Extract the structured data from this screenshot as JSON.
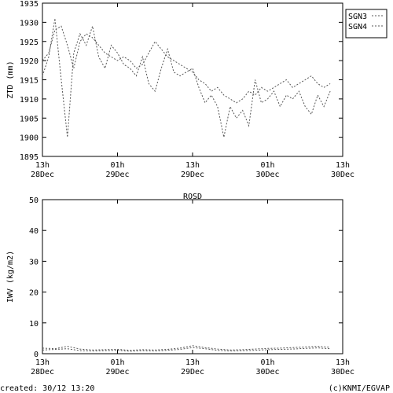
{
  "footer": {
    "created": "created: 30/12 13:20",
    "credit": "(c)KNMI/EGVAP"
  },
  "chart_data": [
    {
      "type": "line",
      "title": "",
      "ylabel": "ZTD (mm)",
      "ylim": [
        1895,
        1935
      ],
      "yticks": [
        1895,
        1900,
        1905,
        1910,
        1915,
        1920,
        1925,
        1930,
        1935
      ],
      "xlim": [
        0,
        48
      ],
      "xticks": [
        {
          "x": 0,
          "line1": "13h",
          "line2": "28Dec"
        },
        {
          "x": 12,
          "line1": "01h",
          "line2": "29Dec"
        },
        {
          "x": 24,
          "line1": "13h",
          "line2": "29Dec"
        },
        {
          "x": 36,
          "line1": "01h",
          "line2": "30Dec"
        },
        {
          "x": 48,
          "line1": "13h",
          "line2": "30Dec"
        }
      ],
      "legend_position": "top-right",
      "series": [
        {
          "name": "SGN3",
          "color": "#555555",
          "x": [
            0,
            1,
            2,
            3,
            4,
            5,
            6,
            7,
            8,
            9,
            10,
            11,
            12,
            13,
            14,
            15,
            16,
            17,
            18,
            19,
            20,
            21,
            22,
            23,
            24,
            25,
            26,
            27,
            28,
            29,
            30,
            31,
            32,
            33,
            34,
            35,
            36,
            37,
            38,
            39,
            40,
            41,
            42,
            43,
            44,
            45,
            46
          ],
          "values": [
            1920,
            1922,
            1928,
            1929,
            1924,
            1918,
            1925,
            1927,
            1926,
            1924,
            1922,
            1921,
            1920,
            1921,
            1920,
            1918,
            1919,
            1922,
            1925,
            1923,
            1921,
            1920,
            1919,
            1918,
            1917,
            1915,
            1914,
            1912,
            1913,
            1911,
            1910,
            1909,
            1910,
            1912,
            1911,
            1913,
            1912,
            1913,
            1914,
            1915,
            1913,
            1914,
            1915,
            1916,
            1914,
            1913,
            1914
          ]
        },
        {
          "name": "SGN4",
          "color": "#555555",
          "x": [
            0,
            1,
            2,
            3,
            4,
            5,
            6,
            7,
            8,
            9,
            10,
            11,
            12,
            13,
            14,
            15,
            16,
            17,
            18,
            19,
            20,
            21,
            22,
            23,
            24,
            25,
            26,
            27,
            28,
            29,
            30,
            31,
            32,
            33,
            34,
            35,
            36,
            37,
            38,
            39,
            40,
            41,
            42,
            43,
            44,
            45,
            46
          ],
          "values": [
            1916,
            1921,
            1931,
            1915,
            1900,
            1922,
            1927,
            1924,
            1929,
            1921,
            1918,
            1924,
            1922,
            1919,
            1918,
            1916,
            1921,
            1914,
            1912,
            1918,
            1923,
            1917,
            1916,
            1917,
            1918,
            1913,
            1909,
            1911,
            1908,
            1900,
            1908,
            1905,
            1907,
            1903,
            1915,
            1909,
            1910,
            1912,
            1908,
            1911,
            1910,
            1912,
            1908,
            1906,
            1911,
            1908,
            1912
          ]
        }
      ]
    },
    {
      "type": "line",
      "title": "ROSD",
      "ylabel": "IWV (kg/m2)",
      "ylim": [
        0,
        50
      ],
      "yticks": [
        0,
        10,
        20,
        30,
        40,
        50
      ],
      "xlim": [
        0,
        48
      ],
      "xticks": [
        {
          "x": 0,
          "line1": "13h",
          "line2": "28Dec"
        },
        {
          "x": 12,
          "line1": "01h",
          "line2": "29Dec"
        },
        {
          "x": 24,
          "line1": "13h",
          "line2": "29Dec"
        },
        {
          "x": 36,
          "line1": "01h",
          "line2": "30Dec"
        },
        {
          "x": 48,
          "line1": "13h",
          "line2": "30Dec"
        }
      ],
      "series": [
        {
          "color": "#555555",
          "x": [
            0,
            2,
            4,
            6,
            8,
            10,
            12,
            14,
            16,
            18,
            20,
            22,
            24,
            26,
            28,
            30,
            32,
            34,
            36,
            38,
            40,
            42,
            44,
            46
          ],
          "values": [
            1.8,
            1.6,
            2.4,
            1.5,
            1.2,
            1.3,
            1.4,
            1.1,
            1.3,
            1.2,
            1.4,
            1.8,
            2.6,
            2.0,
            1.5,
            1.2,
            1.3,
            1.5,
            1.7,
            1.8,
            2.0,
            2.2,
            2.4,
            2.1
          ]
        },
        {
          "color": "#555555",
          "x": [
            0,
            2,
            4,
            6,
            8,
            10,
            12,
            14,
            16,
            18,
            20,
            22,
            24,
            26,
            28,
            30,
            32,
            34,
            36,
            38,
            40,
            42,
            44,
            46
          ],
          "values": [
            1.2,
            1.4,
            1.6,
            1.0,
            0.9,
            1.0,
            1.1,
            0.8,
            1.0,
            0.9,
            1.1,
            1.4,
            2.0,
            1.6,
            1.1,
            0.9,
            1.0,
            1.1,
            1.3,
            1.4,
            1.5,
            1.7,
            1.9,
            1.6
          ]
        }
      ]
    }
  ]
}
